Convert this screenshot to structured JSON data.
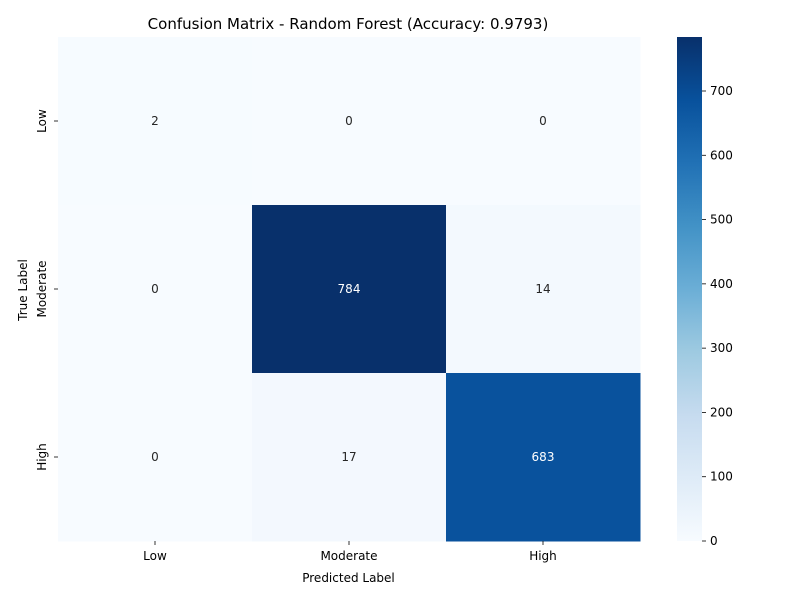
{
  "chart_data": {
    "type": "heatmap",
    "title": "Confusion Matrix - Random Forest (Accuracy: 0.9793)",
    "xlabel": "Predicted Label",
    "ylabel": "True Label",
    "x_categories": [
      "Low",
      "Moderate",
      "High"
    ],
    "y_categories": [
      "Low",
      "Moderate",
      "High"
    ],
    "values": [
      [
        2,
        0,
        0
      ],
      [
        0,
        784,
        14
      ],
      [
        0,
        17,
        683
      ]
    ],
    "colorbar": {
      "min": 0,
      "max": 784,
      "ticks": [
        0,
        100,
        200,
        300,
        400,
        500,
        600,
        700
      ]
    },
    "colormap": [
      "#f7fbff",
      "#deebf7",
      "#c6dbef",
      "#9ecae1",
      "#6baed6",
      "#4292c6",
      "#2171b5",
      "#08519c",
      "#08306b"
    ],
    "annotation_colors": {
      "light_cell_text": "#262626",
      "dark_cell_text": "#ffffff"
    }
  }
}
